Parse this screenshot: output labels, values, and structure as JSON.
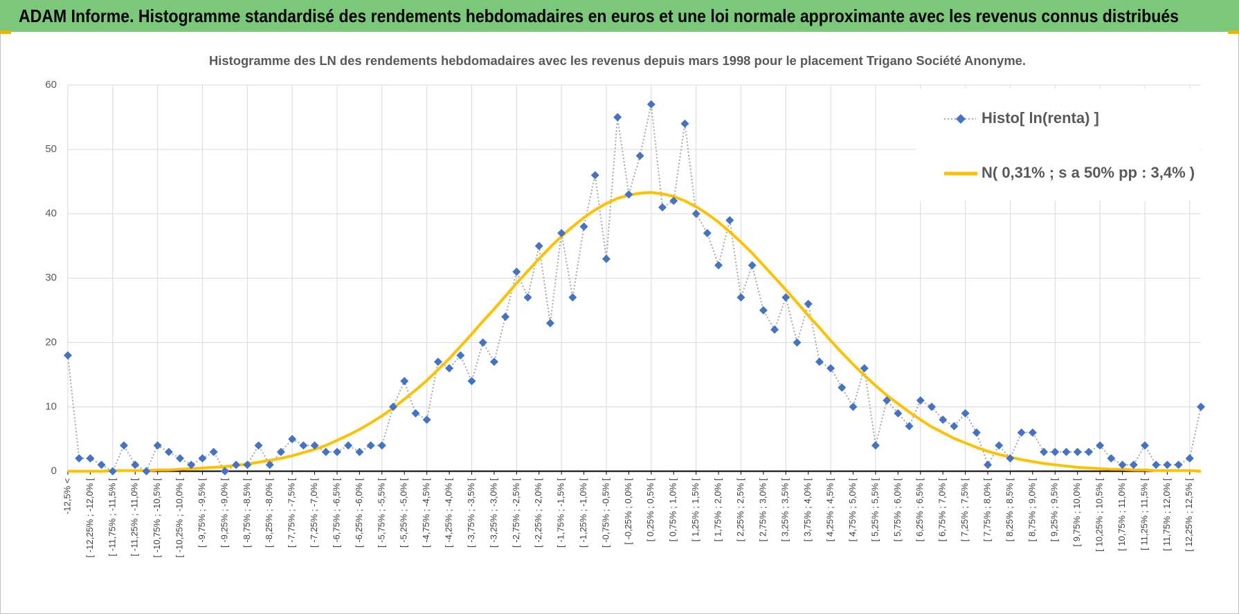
{
  "chart_data": {
    "type": "line",
    "title": "ADAM Informe. Histogramme standardisé des rendements hebdomadaires en euros et une loi normale approximante avec les revenus connus distribués",
    "subtitle": "Histogramme  des LN des rendements hebdomadaires avec les revenus depuis mars 1998 pour le placement Trigano Société Anonyme.",
    "categories": [
      "-12,5% <",
      null,
      "[ -12,25% ; -12,0% [",
      null,
      "[ -11,75% ; -11,5% [",
      null,
      "[ -11,25% ; -11,0% [",
      null,
      "[ -10,75% ; -10,5% [",
      null,
      "[ -10,25% ; -10,0% [",
      null,
      "[ -9,75% ; -9,5% [",
      null,
      "[ -9,25% ; -9,0% [",
      null,
      "[ -8,75% ; -8,5% [",
      null,
      "[ -8,25% ; -8,0% [",
      null,
      "[ -7,75% ; -7,5% [",
      null,
      "[ -7,25% ; -7,0% [",
      null,
      "[ -6,75% ; -6,5% [",
      null,
      "[ -6,25% ; -6,0% [",
      null,
      "[ -5,75% ; -5,5% [",
      null,
      "[ -5,25% ; -5,0% [",
      null,
      "[ -4,75% ; -4,5% [",
      null,
      "[ -4,25% ; -4,0% [",
      null,
      "[ -3,75% ; -3,5% [",
      null,
      "[ -3,25% ; -3,0% [",
      null,
      "[ -2,75% ; -2,5% [",
      null,
      "[ -2,25% ; -2,0% [",
      null,
      "[ -1,75% ; -1,5% [",
      null,
      "[ -1,25% ; -1,0% [",
      null,
      "[ -0,75% ; -0,5% [",
      null,
      "[ -0,25% ; 0,0% [",
      null,
      "[ 0,25% ; 0,5% [",
      null,
      "[ 0,75% ; 1,0% [",
      null,
      "[ 1,25% ; 1,5% [",
      null,
      "[ 1,75% ; 2,0% [",
      null,
      "[ 2,25% ; 2,5% [",
      null,
      "[ 2,75% ; 3,0% [",
      null,
      "[ 3,25% ; 3,5% [",
      null,
      "[ 3,75% ; 4,0% [",
      null,
      "[ 4,25% ; 4,5% [",
      null,
      "[ 4,75% ; 5,0% [",
      null,
      "[ 5,25% ; 5,5% [",
      null,
      "[ 5,75% ; 6,0% [",
      null,
      "[ 6,25% ; 6,5% [",
      null,
      "[ 6,75% ; 7,0% [",
      null,
      "[ 7,25% ; 7,5% [",
      null,
      "[ 7,75% ; 8,0% [",
      null,
      "[ 8,25% ; 8,5% [",
      null,
      "[ 8,75% ; 9,0% [",
      null,
      "[ 9,25% ; 9,5% [",
      null,
      "[ 9,75% ; 10,0% [",
      null,
      "[ 10,25% ; 10,5% [",
      null,
      "[ 10,75% ; 11,0% [",
      null,
      "[ 11,25% ; 11,5% [",
      null,
      "[ 11,75% ; 12,0% [",
      null,
      "[ 12,25% ; 12,5% [",
      null
    ],
    "series": [
      {
        "name": "Histo[ ln(renta) ]",
        "color": "#4472c4",
        "line_color": "#a6a6a6",
        "values": [
          18,
          2,
          2,
          1,
          0,
          4,
          1,
          0,
          4,
          3,
          2,
          1,
          2,
          3,
          0,
          1,
          1,
          4,
          1,
          3,
          5,
          4,
          4,
          3,
          3,
          4,
          3,
          4,
          4,
          10,
          14,
          9,
          8,
          17,
          16,
          18,
          14,
          20,
          17,
          24,
          31,
          27,
          35,
          23,
          37,
          27,
          38,
          46,
          33,
          55,
          43,
          49,
          57,
          41,
          42,
          54,
          40,
          37,
          32,
          39,
          27,
          32,
          25,
          22,
          27,
          20,
          26,
          17,
          16,
          13,
          10,
          16,
          4,
          11,
          9,
          7,
          11,
          10,
          8,
          7,
          9,
          6,
          1,
          4,
          2,
          6,
          6,
          3,
          3,
          3,
          3,
          3,
          4,
          2,
          1,
          1,
          4,
          1,
          1,
          1,
          2,
          10
        ]
      },
      {
        "name": "N( 0,31% ; s a 50% pp : 3,4% )",
        "color": "#ffc000",
        "values": [
          0,
          0,
          0,
          0,
          0.1,
          0.1,
          0.1,
          0.1,
          0.2,
          0.2,
          0.3,
          0.4,
          0.5,
          0.6,
          0.7,
          0.9,
          1.1,
          1.4,
          1.7,
          2.0,
          2.4,
          2.9,
          3.4,
          4.0,
          4.8,
          5.6,
          6.5,
          7.5,
          8.6,
          9.8,
          11.2,
          12.6,
          14.1,
          15.8,
          17.5,
          19.4,
          21.3,
          23.3,
          25.2,
          27.2,
          29.2,
          31.1,
          33.0,
          34.8,
          36.5,
          38.0,
          39.4,
          40.6,
          41.6,
          42.4,
          42.9,
          43.2,
          43.3,
          43.1,
          42.7,
          42.0,
          41.1,
          40.0,
          38.7,
          37.2,
          35.6,
          33.9,
          32.0,
          30.1,
          28.2,
          26.2,
          24.2,
          22.3,
          20.3,
          18.4,
          16.6,
          14.9,
          13.3,
          11.8,
          10.5,
          9.2,
          8.0,
          6.9,
          6.0,
          5.1,
          4.4,
          3.7,
          3.1,
          2.6,
          2.2,
          1.8,
          1.5,
          1.2,
          1.0,
          0.8,
          0.6,
          0.5,
          0.4,
          0.3,
          0.3,
          0.2,
          0.2,
          0.1,
          0.1,
          0.1,
          0.1,
          0
        ]
      }
    ],
    "ylim": [
      0,
      60
    ],
    "yticks": [
      0,
      10,
      20,
      30,
      40,
      50,
      60
    ],
    "grid": true,
    "legend": "top-right"
  }
}
